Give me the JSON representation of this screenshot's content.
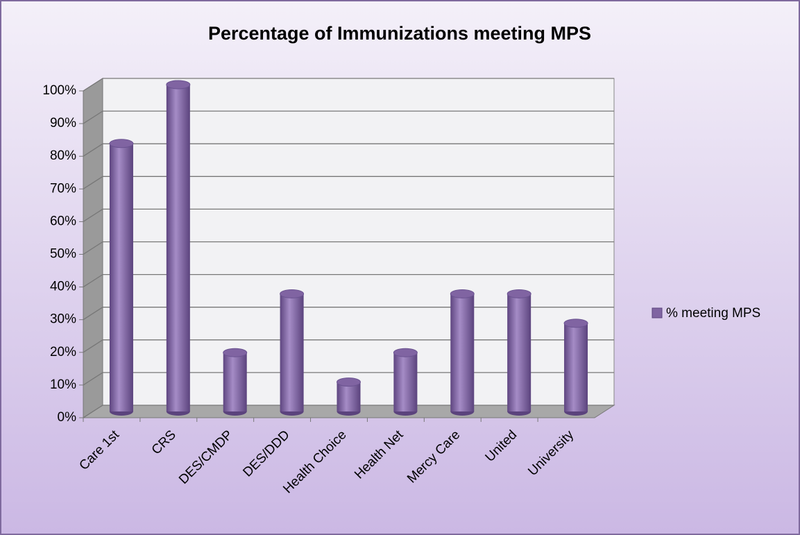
{
  "chart_data": {
    "type": "bar",
    "title": "Percentage of Immunizations meeting MPS",
    "categories": [
      "Care 1st",
      "CRS",
      "DES/CMDP",
      "DES/DDD",
      "Health Choice",
      "Health Net",
      "Mercy Care",
      "United",
      "University"
    ],
    "series": [
      {
        "name": "% meeting MPS",
        "color": "#8064a2",
        "values": [
          82,
          100,
          18,
          36,
          9,
          18,
          36,
          36,
          27
        ]
      }
    ],
    "ylim": [
      0,
      100
    ],
    "yticks": [
      {
        "value": 0,
        "label": "0%"
      },
      {
        "value": 10,
        "label": "10%"
      },
      {
        "value": 20,
        "label": "20%"
      },
      {
        "value": 30,
        "label": "30%"
      },
      {
        "value": 40,
        "label": "40%"
      },
      {
        "value": 50,
        "label": "50%"
      },
      {
        "value": 60,
        "label": "60%"
      },
      {
        "value": 70,
        "label": "70%"
      },
      {
        "value": 80,
        "label": "80%"
      },
      {
        "value": 90,
        "label": "90%"
      },
      {
        "value": 100,
        "label": "100%"
      }
    ],
    "grid": true,
    "legend": "right"
  }
}
